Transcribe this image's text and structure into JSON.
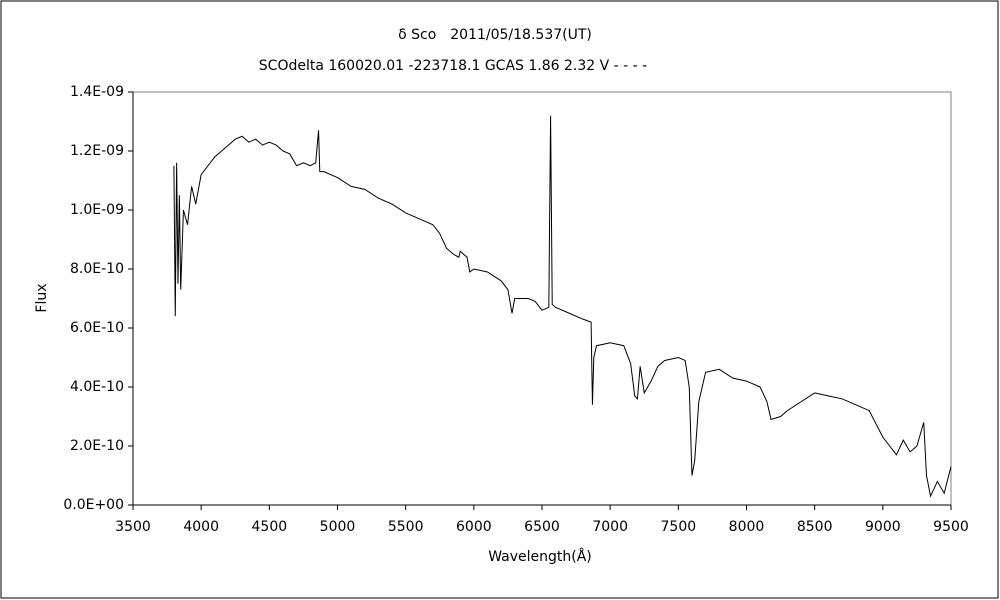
{
  "chart_data": {
    "type": "line",
    "title": "δ Sco　2011/05/18.537(UT)",
    "subtitle": "SCOdelta 160020.01 -223718.1 GCAS 1.86 2.32 V - - - -",
    "x_label": "Wavelength(Å)",
    "y_label": "Flux",
    "color": "#000000",
    "x": [
      3800,
      3810,
      3820,
      3830,
      3840,
      3850,
      3870,
      3900,
      3930,
      3960,
      4000,
      4050,
      4100,
      4150,
      4200,
      4250,
      4300,
      4350,
      4400,
      4450,
      4500,
      4550,
      4600,
      4650,
      4700,
      4750,
      4800,
      4840,
      4861,
      4870,
      4900,
      5000,
      5100,
      5200,
      5300,
      5400,
      5500,
      5600,
      5700,
      5750,
      5800,
      5850,
      5890,
      5900,
      5950,
      5970,
      6000,
      6100,
      6200,
      6250,
      6280,
      6300,
      6400,
      6450,
      6500,
      6550,
      6563,
      6575,
      6600,
      6700,
      6800,
      6860,
      6870,
      6880,
      6900,
      7000,
      7100,
      7150,
      7180,
      7200,
      7220,
      7250,
      7300,
      7350,
      7400,
      7500,
      7550,
      7580,
      7600,
      7620,
      7650,
      7700,
      7800,
      7900,
      8000,
      8100,
      8150,
      8180,
      8250,
      8300,
      8400,
      8500,
      8600,
      8700,
      8800,
      8900,
      9000,
      9050,
      9100,
      9150,
      9200,
      9250,
      9300,
      9320,
      9350,
      9400,
      9450,
      9500
    ],
    "values": [
      1.15e-09,
      6.4e-10,
      1.16e-09,
      7.5e-10,
      1.05e-09,
      7.3e-10,
      1e-09,
      9.5e-10,
      1.08e-09,
      1.02e-09,
      1.12e-09,
      1.15e-09,
      1.18e-09,
      1.2e-09,
      1.22e-09,
      1.24e-09,
      1.25e-09,
      1.23e-09,
      1.24e-09,
      1.22e-09,
      1.23e-09,
      1.22e-09,
      1.2e-09,
      1.19e-09,
      1.15e-09,
      1.16e-09,
      1.15e-09,
      1.16e-09,
      1.27e-09,
      1.13e-09,
      1.13e-09,
      1.11e-09,
      1.08e-09,
      1.07e-09,
      1.04e-09,
      1.02e-09,
      9.9e-10,
      9.7e-10,
      9.5e-10,
      9.2e-10,
      8.7e-10,
      8.5e-10,
      8.4e-10,
      8.6e-10,
      8.4e-10,
      7.9e-10,
      8e-10,
      7.9e-10,
      7.6e-10,
      7.3e-10,
      6.5e-10,
      7e-10,
      7e-10,
      6.9e-10,
      6.6e-10,
      6.7e-10,
      1.32e-09,
      6.8e-10,
      6.7e-10,
      6.5e-10,
      6.3e-10,
      6.2e-10,
      3.4e-10,
      5e-10,
      5.4e-10,
      5.5e-10,
      5.4e-10,
      4.8e-10,
      3.7e-10,
      3.6e-10,
      4.7e-10,
      3.8e-10,
      4.2e-10,
      4.7e-10,
      4.9e-10,
      5e-10,
      4.9e-10,
      4e-10,
      1e-10,
      1.5e-10,
      3.5e-10,
      4.5e-10,
      4.6e-10,
      4.3e-10,
      4.2e-10,
      4e-10,
      3.5e-10,
      2.9e-10,
      3e-10,
      3.2e-10,
      3.5e-10,
      3.8e-10,
      3.7e-10,
      3.6e-10,
      3.4e-10,
      3.2e-10,
      2.3e-10,
      2e-10,
      1.7e-10,
      2.2e-10,
      1.8e-10,
      2e-10,
      2.8e-10,
      1e-10,
      3e-11,
      8e-11,
      4e-11,
      1.3e-10
    ],
    "xlim": [
      3500,
      9500
    ],
    "xticks": [
      3500,
      4000,
      4500,
      5000,
      5500,
      6000,
      6500,
      7000,
      7500,
      8000,
      8500,
      9000,
      9500
    ],
    "ylim": [
      0,
      1.4e-09
    ],
    "yticks": [
      {
        "value": 0,
        "label": "0.0E+00"
      },
      {
        "value": 2e-10,
        "label": "2.0E-10"
      },
      {
        "value": 4e-10,
        "label": "4.0E-10"
      },
      {
        "value": 6e-10,
        "label": "6.0E-10"
      },
      {
        "value": 8e-10,
        "label": "8.0E-10"
      },
      {
        "value": 1e-09,
        "label": "1.0E-09"
      },
      {
        "value": 1.2e-09,
        "label": "1.2E-09"
      },
      {
        "value": 1.4e-09,
        "label": "1.4E-09"
      }
    ],
    "grid": false
  }
}
